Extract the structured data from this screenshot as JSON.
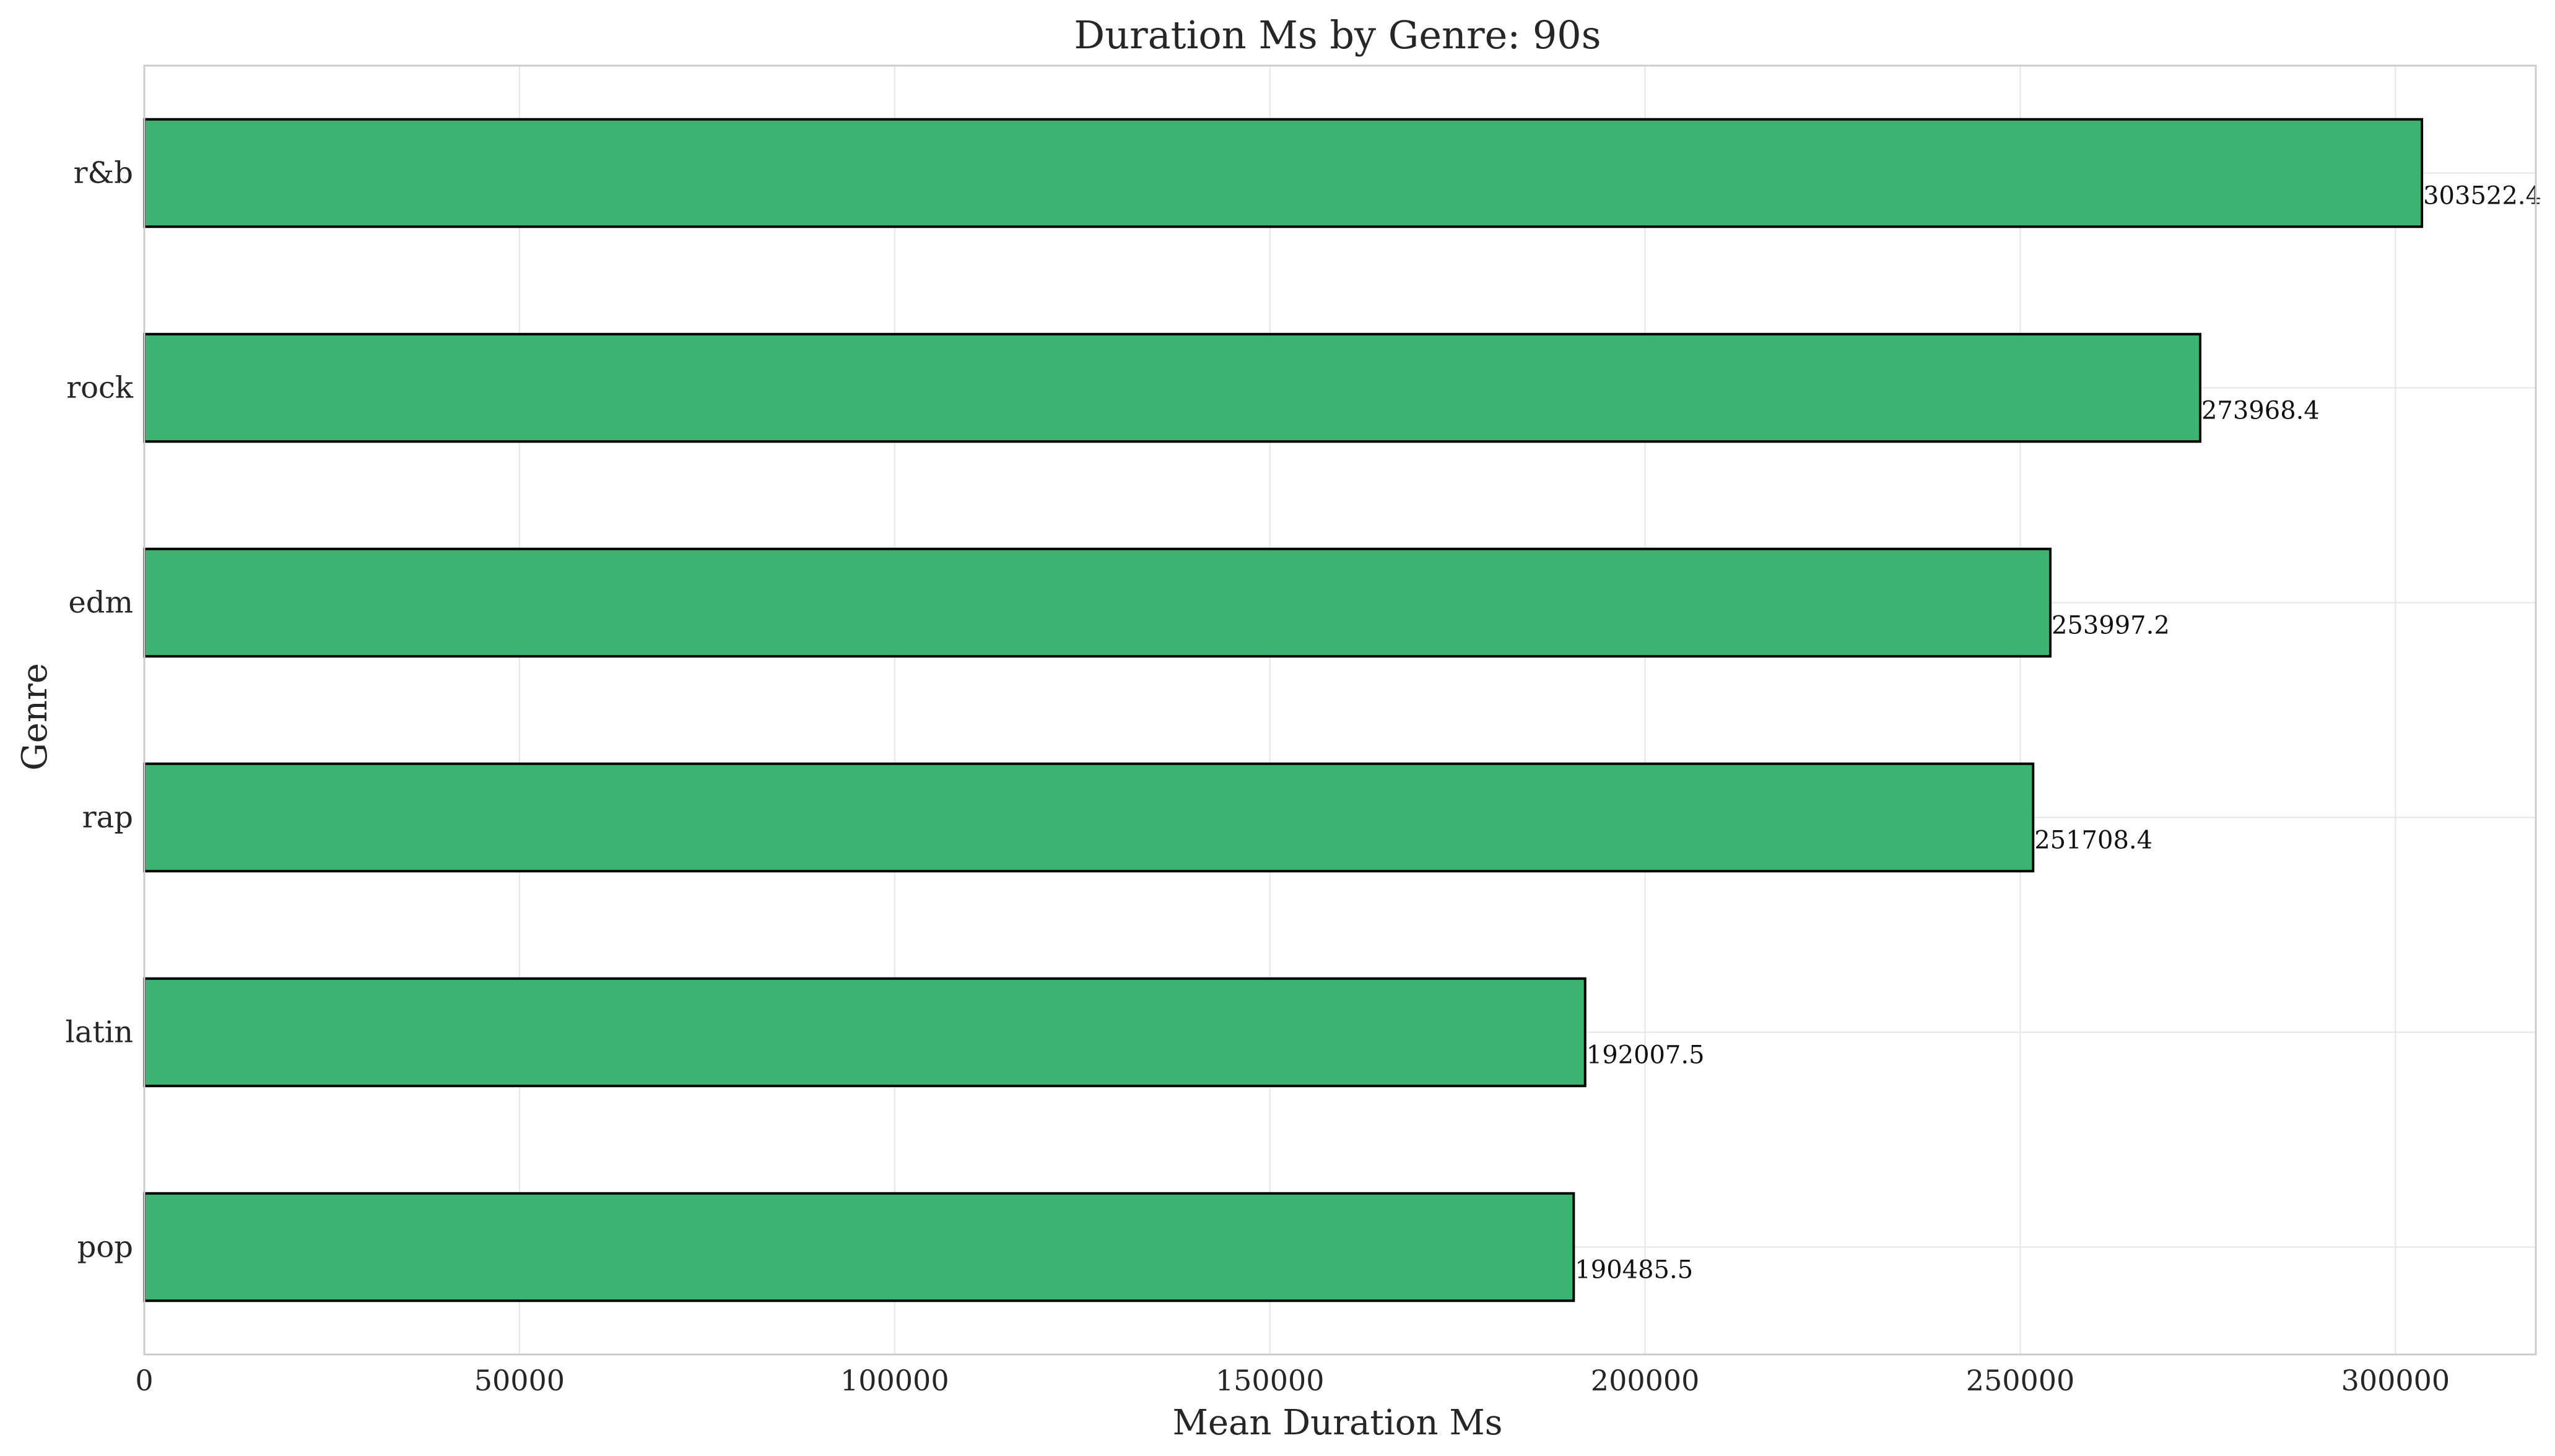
{
  "chart_data": {
    "type": "bar",
    "orientation": "horizontal",
    "title": "Duration Ms by Genre: 90s",
    "xlabel": "Mean Duration Ms",
    "ylabel": "Genre",
    "categories": [
      "r&b",
      "rock",
      "edm",
      "rap",
      "latin",
      "pop"
    ],
    "values": [
      303522.4,
      273968.4,
      253997.2,
      251708.4,
      192007.5,
      190485.5
    ],
    "value_labels": [
      "303522.4",
      "273968.4",
      "253997.2",
      "251708.4",
      "192007.5",
      "190485.5"
    ],
    "xlim": [
      0,
      318698.5
    ],
    "xticks": [
      0,
      50000,
      100000,
      150000,
      200000,
      250000,
      300000
    ],
    "xtick_labels": [
      "0",
      "50000",
      "100000",
      "150000",
      "200000",
      "250000",
      "300000"
    ],
    "grid": true,
    "legend": "none",
    "colors": {
      "bar_fill": "#3cb371",
      "bar_edge": "#000000",
      "grid": "#e5e5e5",
      "spine": "#cccccc",
      "text": "#262626"
    }
  }
}
